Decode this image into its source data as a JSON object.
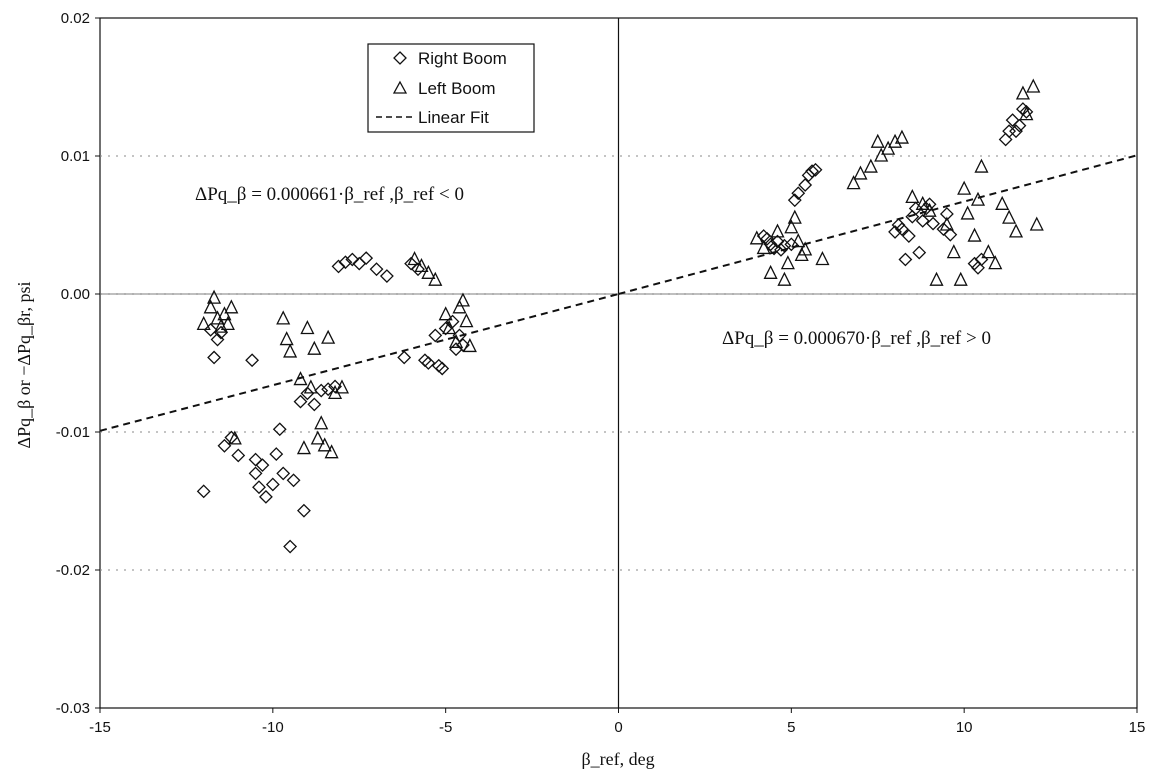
{
  "chart_data": {
    "type": "scatter",
    "xlabel": "β_ref, deg",
    "ylabel": "ΔPq_β or −ΔPq_βr, psi",
    "xlim": [
      -15,
      15
    ],
    "ylim": [
      -0.03,
      0.02
    ],
    "x_ticks": [
      "-15",
      "-10",
      "-5",
      "0",
      "5",
      "10",
      "15"
    ],
    "y_ticks": [
      "0.02",
      "0.01",
      "0.00",
      "-0.01",
      "-0.02",
      "-0.03"
    ],
    "grid": "dotted horizontal",
    "legend_position": "top-left",
    "legend": [
      {
        "label": "Right Boom",
        "marker": "diamond"
      },
      {
        "label": "Left Boom",
        "marker": "triangle"
      },
      {
        "label": "Linear Fit",
        "marker": "dashed-line"
      }
    ],
    "annotations": [
      "ΔPq_β = 0.000661·β_ref   ,β_ref < 0",
      "ΔPq_β = 0.000670·β_ref   ,β_ref > 0"
    ],
    "series": [
      {
        "name": "Right Boom",
        "marker": "diamond",
        "points": [
          [
            -12.0,
            -0.0143
          ],
          [
            -11.8,
            -0.0026
          ],
          [
            -11.7,
            -0.0046
          ],
          [
            -11.6,
            -0.0033
          ],
          [
            -11.5,
            -0.0028
          ],
          [
            -11.4,
            -0.011
          ],
          [
            -11.2,
            -0.0104
          ],
          [
            -11.0,
            -0.0117
          ],
          [
            -10.6,
            -0.0048
          ],
          [
            -10.5,
            -0.012
          ],
          [
            -10.5,
            -0.013
          ],
          [
            -10.4,
            -0.014
          ],
          [
            -10.3,
            -0.0124
          ],
          [
            -10.2,
            -0.0147
          ],
          [
            -10.0,
            -0.0138
          ],
          [
            -9.9,
            -0.0116
          ],
          [
            -9.8,
            -0.0098
          ],
          [
            -9.7,
            -0.013
          ],
          [
            -9.5,
            -0.0183
          ],
          [
            -9.4,
            -0.0135
          ],
          [
            -9.2,
            -0.0078
          ],
          [
            -9.1,
            -0.0157
          ],
          [
            -9.0,
            -0.0072
          ],
          [
            -8.8,
            -0.008
          ],
          [
            -8.6,
            -0.007
          ],
          [
            -8.4,
            -0.0069
          ],
          [
            -8.2,
            -0.0067
          ],
          [
            -8.1,
            0.002
          ],
          [
            -7.9,
            0.0023
          ],
          [
            -7.7,
            0.0025
          ],
          [
            -7.5,
            0.0022
          ],
          [
            -7.3,
            0.0026
          ],
          [
            -7.0,
            0.0018
          ],
          [
            -6.7,
            0.0013
          ],
          [
            -6.2,
            -0.0046
          ],
          [
            -6.0,
            0.0022
          ],
          [
            -5.8,
            0.0018
          ],
          [
            -5.6,
            -0.0048
          ],
          [
            -5.5,
            -0.005
          ],
          [
            -5.3,
            -0.003
          ],
          [
            -5.2,
            -0.0052
          ],
          [
            -5.1,
            -0.0054
          ],
          [
            -5.0,
            -0.0025
          ],
          [
            -4.8,
            -0.002
          ],
          [
            -4.7,
            -0.004
          ],
          [
            -4.6,
            -0.003
          ],
          [
            -4.5,
            -0.0037
          ],
          [
            4.2,
            0.0042
          ],
          [
            4.3,
            0.004
          ],
          [
            4.4,
            0.0036
          ],
          [
            4.5,
            0.0033
          ],
          [
            4.6,
            0.0038
          ],
          [
            4.7,
            0.0032
          ],
          [
            4.8,
            0.0035
          ],
          [
            5.0,
            0.0036
          ],
          [
            5.1,
            0.0068
          ],
          [
            5.2,
            0.0073
          ],
          [
            5.4,
            0.0079
          ],
          [
            5.5,
            0.0086
          ],
          [
            5.6,
            0.0089
          ],
          [
            5.7,
            0.009
          ],
          [
            8.0,
            0.0045
          ],
          [
            8.1,
            0.005
          ],
          [
            8.2,
            0.0047
          ],
          [
            8.3,
            0.0025
          ],
          [
            8.4,
            0.0042
          ],
          [
            8.5,
            0.0056
          ],
          [
            8.6,
            0.0062
          ],
          [
            8.7,
            0.003
          ],
          [
            8.8,
            0.0053
          ],
          [
            8.9,
            0.0062
          ],
          [
            9.0,
            0.0065
          ],
          [
            9.1,
            0.0051
          ],
          [
            9.4,
            0.0047
          ],
          [
            9.5,
            0.0058
          ],
          [
            9.6,
            0.0043
          ],
          [
            10.3,
            0.0022
          ],
          [
            10.4,
            0.0019
          ],
          [
            10.5,
            0.0025
          ],
          [
            11.2,
            0.0112
          ],
          [
            11.3,
            0.0118
          ],
          [
            11.4,
            0.0126
          ],
          [
            11.5,
            0.0118
          ],
          [
            11.6,
            0.0122
          ],
          [
            11.7,
            0.0134
          ],
          [
            11.8,
            0.0132
          ]
        ]
      },
      {
        "name": "Left Boom",
        "marker": "triangle",
        "points": [
          [
            -12.0,
            -0.0022
          ],
          [
            -11.8,
            -0.001
          ],
          [
            -11.7,
            -0.0003
          ],
          [
            -11.6,
            -0.0018
          ],
          [
            -11.5,
            -0.0024
          ],
          [
            -11.4,
            -0.0015
          ],
          [
            -11.3,
            -0.0022
          ],
          [
            -11.2,
            -0.001
          ],
          [
            -11.1,
            -0.0105
          ],
          [
            -9.7,
            -0.0018
          ],
          [
            -9.6,
            -0.0033
          ],
          [
            -9.5,
            -0.0042
          ],
          [
            -9.2,
            -0.0062
          ],
          [
            -9.1,
            -0.0112
          ],
          [
            -9.0,
            -0.0025
          ],
          [
            -8.9,
            -0.0068
          ],
          [
            -8.8,
            -0.004
          ],
          [
            -8.7,
            -0.0105
          ],
          [
            -8.6,
            -0.0094
          ],
          [
            -8.5,
            -0.011
          ],
          [
            -8.4,
            -0.0032
          ],
          [
            -8.3,
            -0.0115
          ],
          [
            -8.2,
            -0.0072
          ],
          [
            -8.0,
            -0.0068
          ],
          [
            -5.9,
            0.0025
          ],
          [
            -5.7,
            0.002
          ],
          [
            -5.5,
            0.0015
          ],
          [
            -5.3,
            0.001
          ],
          [
            -5.0,
            -0.0015
          ],
          [
            -4.9,
            -0.0025
          ],
          [
            -4.7,
            -0.0035
          ],
          [
            -4.6,
            -0.001
          ],
          [
            -4.5,
            -0.0005
          ],
          [
            -4.4,
            -0.002
          ],
          [
            -4.3,
            -0.0038
          ],
          [
            4.0,
            0.004
          ],
          [
            4.2,
            0.0033
          ],
          [
            4.4,
            0.0015
          ],
          [
            4.6,
            0.0045
          ],
          [
            4.8,
            0.001
          ],
          [
            4.9,
            0.0022
          ],
          [
            5.0,
            0.0048
          ],
          [
            5.1,
            0.0055
          ],
          [
            5.2,
            0.0038
          ],
          [
            5.3,
            0.0028
          ],
          [
            5.4,
            0.0032
          ],
          [
            5.9,
            0.0025
          ],
          [
            6.8,
            0.008
          ],
          [
            7.0,
            0.0087
          ],
          [
            7.3,
            0.0092
          ],
          [
            7.5,
            0.011
          ],
          [
            7.6,
            0.01
          ],
          [
            7.8,
            0.0105
          ],
          [
            8.0,
            0.011
          ],
          [
            8.2,
            0.0113
          ],
          [
            8.5,
            0.007
          ],
          [
            8.8,
            0.0065
          ],
          [
            9.0,
            0.006
          ],
          [
            9.2,
            0.001
          ],
          [
            9.5,
            0.005
          ],
          [
            9.7,
            0.003
          ],
          [
            9.9,
            0.001
          ],
          [
            10.0,
            0.0076
          ],
          [
            10.1,
            0.0058
          ],
          [
            10.3,
            0.0042
          ],
          [
            10.4,
            0.0068
          ],
          [
            10.5,
            0.0092
          ],
          [
            10.7,
            0.003
          ],
          [
            10.9,
            0.0022
          ],
          [
            11.1,
            0.0065
          ],
          [
            11.3,
            0.0055
          ],
          [
            11.5,
            0.0045
          ],
          [
            11.7,
            0.0145
          ],
          [
            11.8,
            0.013
          ],
          [
            12.0,
            0.015
          ],
          [
            12.1,
            0.005
          ]
        ]
      }
    ],
    "linear_fit": {
      "style": "dashed",
      "segments": [
        {
          "x": [
            -15,
            0
          ],
          "slope": 0.000661
        },
        {
          "x": [
            0,
            15
          ],
          "slope": 0.00067
        }
      ]
    }
  }
}
